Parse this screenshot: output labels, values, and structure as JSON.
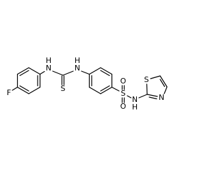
{
  "atoms": [
    "F",
    "H",
    "N",
    "S",
    "N",
    "H",
    "S",
    "O",
    "O",
    "N",
    "H",
    "S",
    "N"
  ]
}
